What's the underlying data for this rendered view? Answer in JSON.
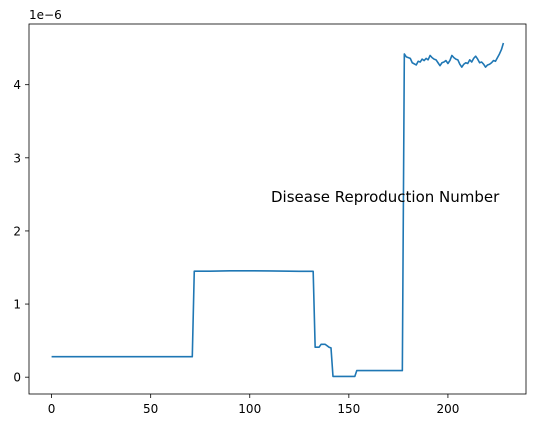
{
  "chart_data": {
    "type": "line",
    "title": "",
    "xlabel": "",
    "ylabel": "",
    "y_offset_label": "1e−6",
    "annotation": "Disease Reproduction Number",
    "xlim": [
      -11.4,
      239.4
    ],
    "ylim": [
      -0.23,
      4.83
    ],
    "x_ticks": [
      0,
      50,
      100,
      150,
      200
    ],
    "x_tick_labels": [
      "0",
      "50",
      "100",
      "150",
      "200"
    ],
    "y_ticks": [
      0,
      1,
      2,
      3,
      4
    ],
    "y_tick_labels": [
      "0",
      "1",
      "2",
      "3",
      "4"
    ],
    "grid": false,
    "legend": "none",
    "series": [
      {
        "color": "#1f77b4",
        "x": [
          0,
          20,
          40,
          60,
          71,
          72,
          80,
          90,
          100,
          110,
          120,
          125,
          132,
          133,
          135,
          136,
          138,
          140,
          141,
          142,
          144,
          150,
          153,
          154,
          160,
          170,
          177,
          178,
          179,
          180,
          181,
          182,
          184,
          185,
          186,
          187,
          188,
          189,
          190,
          191,
          192,
          193,
          194,
          195,
          196,
          197,
          198,
          199,
          200,
          201,
          202,
          203,
          204,
          205,
          206,
          207,
          208,
          209,
          210,
          211,
          212,
          213,
          214,
          215,
          216,
          217,
          218,
          219,
          220,
          221,
          222,
          223,
          224,
          225,
          226,
          227,
          228
        ],
        "y": [
          0.28,
          0.28,
          0.28,
          0.28,
          0.28,
          1.45,
          1.45,
          1.455,
          1.455,
          1.453,
          1.45,
          1.448,
          1.448,
          0.41,
          0.41,
          0.45,
          0.45,
          0.41,
          0.4,
          0.01,
          0.01,
          0.01,
          0.01,
          0.09,
          0.09,
          0.09,
          0.09,
          4.42,
          4.38,
          4.37,
          4.36,
          4.3,
          4.27,
          4.32,
          4.31,
          4.35,
          4.33,
          4.36,
          4.34,
          4.4,
          4.37,
          4.35,
          4.34,
          4.3,
          4.26,
          4.3,
          4.31,
          4.33,
          4.29,
          4.33,
          4.4,
          4.37,
          4.35,
          4.34,
          4.28,
          4.24,
          4.28,
          4.3,
          4.29,
          4.34,
          4.31,
          4.36,
          4.39,
          4.35,
          4.3,
          4.31,
          4.28,
          4.24,
          4.27,
          4.28,
          4.3,
          4.33,
          4.32,
          4.37,
          4.42,
          4.48,
          4.57
        ]
      }
    ]
  }
}
